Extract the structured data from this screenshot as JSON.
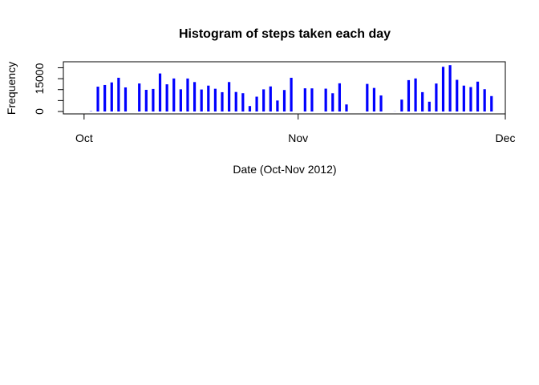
{
  "chart_data": {
    "type": "bar",
    "title": "Histogram of steps taken each day",
    "xlabel": "Date (Oct-Nov 2012)",
    "ylabel": "Frequency",
    "x_ticks": [
      {
        "label": "Oct",
        "date": "2012-10-01"
      },
      {
        "label": "Nov",
        "date": "2012-11-01"
      },
      {
        "label": "Dec",
        "date": "2012-12-01"
      }
    ],
    "y_ticks": [
      0,
      5000,
      10000,
      15000,
      20000
    ],
    "y_tick_labels": [
      "0",
      "15000"
    ],
    "ylim": [
      0,
      22000
    ],
    "xlim": [
      "2012-09-28",
      "2012-12-01"
    ],
    "bar_color": "#0000ff",
    "x": [
      "2012-10-01",
      "2012-10-02",
      "2012-10-03",
      "2012-10-04",
      "2012-10-05",
      "2012-10-06",
      "2012-10-07",
      "2012-10-08",
      "2012-10-09",
      "2012-10-10",
      "2012-10-11",
      "2012-10-12",
      "2012-10-13",
      "2012-10-14",
      "2012-10-15",
      "2012-10-16",
      "2012-10-17",
      "2012-10-18",
      "2012-10-19",
      "2012-10-20",
      "2012-10-21",
      "2012-10-22",
      "2012-10-23",
      "2012-10-24",
      "2012-10-25",
      "2012-10-26",
      "2012-10-27",
      "2012-10-28",
      "2012-10-29",
      "2012-10-30",
      "2012-10-31",
      "2012-11-01",
      "2012-11-02",
      "2012-11-03",
      "2012-11-04",
      "2012-11-05",
      "2012-11-06",
      "2012-11-07",
      "2012-11-08",
      "2012-11-09",
      "2012-11-10",
      "2012-11-11",
      "2012-11-12",
      "2012-11-13",
      "2012-11-14",
      "2012-11-15",
      "2012-11-16",
      "2012-11-17",
      "2012-11-18",
      "2012-11-19",
      "2012-11-20",
      "2012-11-21",
      "2012-11-22",
      "2012-11-23",
      "2012-11-24",
      "2012-11-25",
      "2012-11-26",
      "2012-11-27",
      "2012-11-28",
      "2012-11-29",
      "2012-11-30"
    ],
    "values": [
      0,
      126,
      11352,
      12116,
      13294,
      15420,
      11015,
      0,
      12811,
      9900,
      10304,
      17382,
      12426,
      15098,
      10139,
      15084,
      13452,
      10056,
      11829,
      10395,
      8821,
      13460,
      8918,
      8355,
      2492,
      6778,
      10119,
      11458,
      5018,
      9819,
      15414,
      0,
      10600,
      10571,
      0,
      10439,
      8334,
      12883,
      3219,
      0,
      0,
      12608,
      10765,
      7336,
      0,
      41,
      5441,
      14339,
      15110,
      8841,
      4472,
      12787,
      20427,
      21194,
      14478,
      11834,
      11162,
      13646,
      10183,
      7047,
      0
    ]
  }
}
